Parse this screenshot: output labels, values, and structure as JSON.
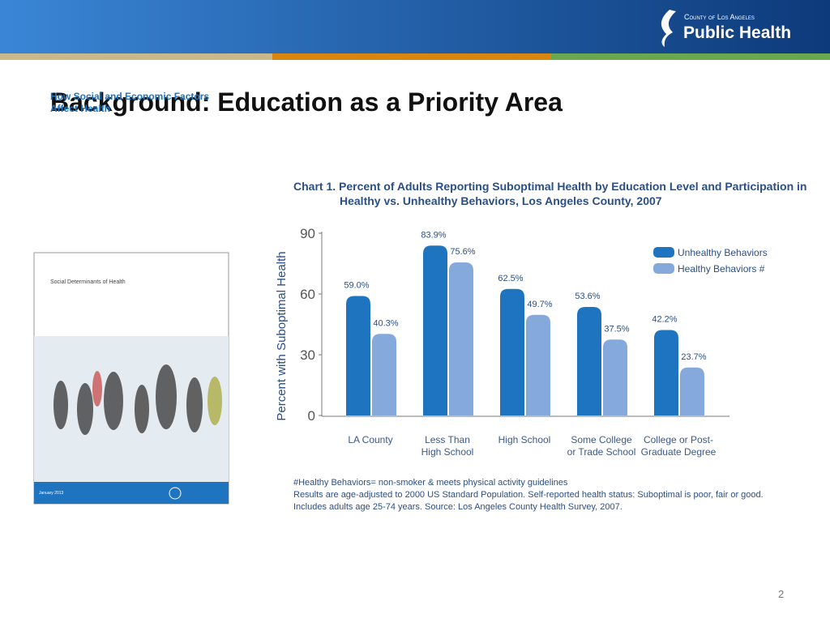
{
  "header": {
    "org_top": "County of Los Angeles",
    "org_name": "Public Health"
  },
  "title": "Background: Education as a Priority Area",
  "cover": {
    "series": "Social Determinants of Health",
    "title": "How Social and Economic Factors Affect Health",
    "date": "January 2013"
  },
  "chart_data": {
    "type": "bar",
    "title": "Chart 1. Percent of Adults Reporting Suboptimal Health by Education Level and Participation in Healthy vs. Unhealthy Behaviors, Los Angeles County, 2007",
    "ylabel": "Percent with Suboptimal Health",
    "categories": [
      "LA County",
      "Less Than\nHigh School",
      "High School",
      "Some College\nor Trade School",
      "College or Post-\nGraduate Degree"
    ],
    "series": [
      {
        "name": "Unhealthy Behaviors",
        "color": "#1f74bf",
        "values": [
          59.0,
          83.9,
          62.5,
          53.6,
          42.2
        ],
        "value_labels": [
          "59.0%",
          "83.9%",
          "62.5%",
          "53.6%",
          "42.2%"
        ]
      },
      {
        "name": "Healthy Behaviors #",
        "color": "#86a9dc",
        "values": [
          40.3,
          75.6,
          49.7,
          37.5,
          23.7
        ],
        "value_labels": [
          "40.3%",
          "75.6%",
          "49.7%",
          "37.5%",
          "23.7%"
        ]
      }
    ],
    "ylim": [
      0,
      90
    ],
    "yticks": [
      0,
      30,
      60,
      90
    ],
    "legend": "upper right",
    "notes": [
      "#Healthy Behaviors= non-smoker & meets physical activity guidelines",
      "Results are age-adjusted to 2000 US Standard Population. Self-reported health status: Suboptimal is poor, fair or good.",
      "Includes adults age 25-74 years. Source: Los Angeles County Health Survey, 2007."
    ]
  },
  "page_number": "2"
}
